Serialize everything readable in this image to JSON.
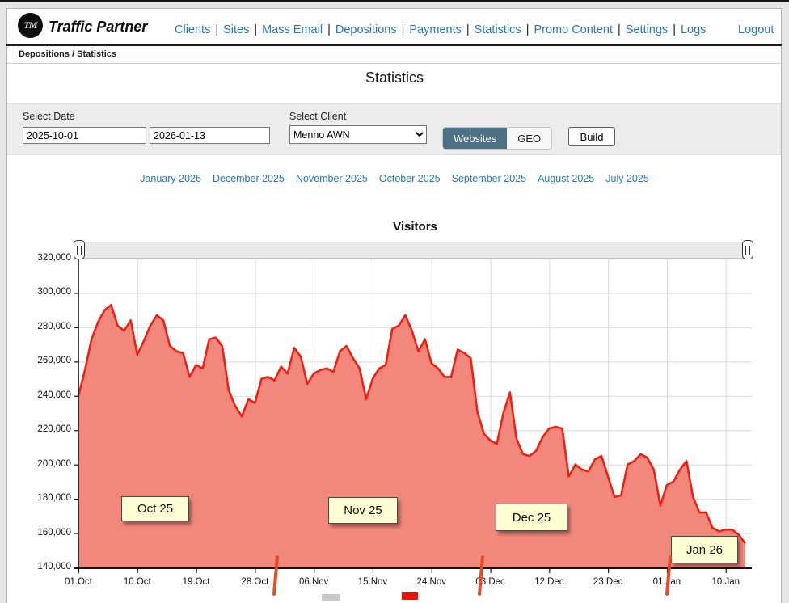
{
  "header": {
    "logo_text": "TM",
    "brand": "Traffic Partner",
    "nav": [
      "Clients",
      "Sites",
      "Mass Email",
      "Depositions",
      "Payments",
      "Statistics",
      "Promo Content",
      "Settings",
      "Logs"
    ],
    "logout_label": "Logout"
  },
  "breadcrumb": "Depositions / Statistics",
  "page_title": "Statistics",
  "filters": {
    "date_label": "Select Date",
    "date_from": "2025-10-01",
    "date_to": "2026-01-13",
    "client_label": "Select Client",
    "client_value": "Menno AWN",
    "toggle_websites": "Websites",
    "toggle_geo": "GEO",
    "active_toggle": "Websites",
    "build_label": "Build"
  },
  "month_links": [
    "January 2026",
    "December 2025",
    "November 2025",
    "October 2025",
    "September 2025",
    "August 2025",
    "July 2025"
  ],
  "chart_data": {
    "type": "area",
    "title": "Visitors",
    "ylabel": "",
    "xlabel": "",
    "ylim": [
      140000,
      320000
    ],
    "y_step": 20000,
    "grid": true,
    "colors": {
      "line": "#ee2012",
      "fill": "#f2887c"
    },
    "x_tick_indices": [
      0,
      9,
      18,
      27,
      36,
      45,
      54,
      63,
      72,
      81,
      90,
      99
    ],
    "x_tick_labels": [
      "01.Oct",
      "10.Oct",
      "19.Oct",
      "28.Oct",
      "06.Nov",
      "15.Nov",
      "24.Nov",
      "03.Dec",
      "12.Dec",
      "23.Dec",
      "01.Jan",
      "10.Jan"
    ],
    "flags": [
      {
        "label": "Oct 25"
      },
      {
        "label": "Nov 25"
      },
      {
        "label": "Dec 25"
      },
      {
        "label": "Jan 26"
      }
    ],
    "values": [
      240000,
      255000,
      273000,
      283000,
      290000,
      293000,
      281000,
      278000,
      284000,
      264000,
      272000,
      281000,
      287000,
      284000,
      269000,
      266000,
      265000,
      251000,
      258000,
      256000,
      273000,
      274000,
      269000,
      243000,
      234000,
      228000,
      238000,
      236000,
      250000,
      251000,
      249000,
      257000,
      253000,
      268000,
      263000,
      247000,
      253000,
      255000,
      256000,
      254000,
      266000,
      269000,
      262000,
      256000,
      238000,
      250000,
      256000,
      258000,
      279000,
      281000,
      287000,
      278000,
      266000,
      273000,
      259000,
      256000,
      251000,
      251000,
      267000,
      265000,
      262000,
      231000,
      218000,
      214000,
      212000,
      230000,
      242000,
      215000,
      206000,
      205000,
      208000,
      216000,
      221000,
      222000,
      221000,
      193000,
      200000,
      197000,
      196000,
      203000,
      205000,
      193000,
      181000,
      182000,
      200000,
      202000,
      206000,
      204000,
      197000,
      176000,
      188000,
      190000,
      197000,
      202000,
      181000,
      172000,
      172000,
      163000,
      161000,
      162000,
      162000,
      159000,
      154000
    ]
  }
}
